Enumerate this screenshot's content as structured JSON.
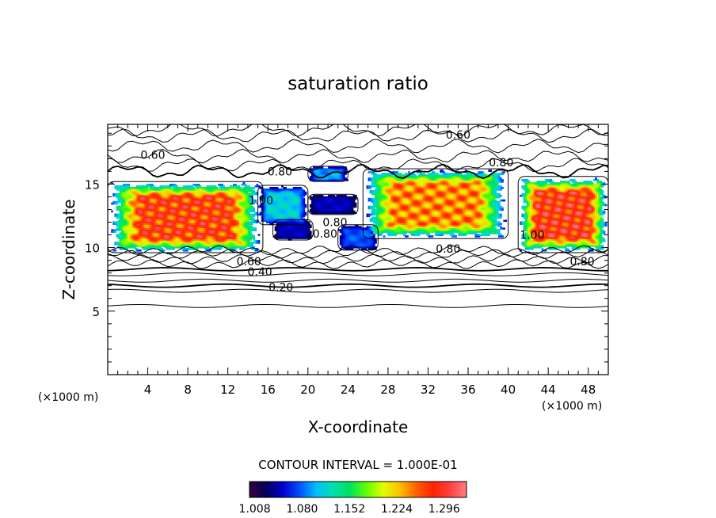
{
  "chart_data": {
    "type": "heatmap",
    "title": "saturation ratio",
    "xlabel": "X-coordinate",
    "ylabel": "Z-coordinate",
    "x_unit": "(×1000 m)",
    "z_unit": "(×1000 m)",
    "xlim": [
      0,
      50
    ],
    "ylim": [
      0,
      19.7
    ],
    "x_ticks": [
      "4",
      "8",
      "12",
      "16",
      "20",
      "24",
      "28",
      "32",
      "36",
      "40",
      "44",
      "48"
    ],
    "y_ticks": [
      "5",
      "10",
      "15"
    ],
    "contour_interval_text": "CONTOUR INTERVAL = 1.000E-01",
    "contour_interval": 0.1,
    "contour_labels": [
      {
        "text": "0.60",
        "x": 35.0,
        "z": 18.9
      },
      {
        "text": "0.60",
        "x": 4.5,
        "z": 17.3
      },
      {
        "text": "0.80",
        "x": 17.2,
        "z": 16.0
      },
      {
        "text": "0.80",
        "x": 39.3,
        "z": 16.7
      },
      {
        "text": "1.00",
        "x": 15.3,
        "z": 13.7
      },
      {
        "text": "0.80",
        "x": 22.7,
        "z": 12.0
      },
      {
        "text": "0.80",
        "x": 21.7,
        "z": 11.1
      },
      {
        "text": "1.00",
        "x": 42.4,
        "z": 11.0
      },
      {
        "text": "0.80",
        "x": 34.0,
        "z": 9.9
      },
      {
        "text": "0.60",
        "x": 14.1,
        "z": 8.9
      },
      {
        "text": "0.80",
        "x": 47.4,
        "z": 8.9
      },
      {
        "text": "0.40",
        "x": 15.2,
        "z": 8.1
      },
      {
        "text": "0.20",
        "x": 17.3,
        "z": 6.9
      }
    ],
    "supersaturation_regions": [
      {
        "x": [
          0,
          15.5
        ],
        "z": [
          9.6,
          15.2
        ],
        "peak": 1.29
      },
      {
        "x": [
          15,
          20
        ],
        "z": [
          11.8,
          14.9
        ],
        "peak": 1.12
      },
      {
        "x": [
          20,
          24
        ],
        "z": [
          15.2,
          16.4
        ],
        "peak": 1.1
      },
      {
        "x": [
          16.5,
          20.5
        ],
        "z": [
          10.6,
          12.2
        ],
        "peak": 1.05
      },
      {
        "x": [
          20,
          25
        ],
        "z": [
          12.6,
          14.2
        ],
        "peak": 1.05
      },
      {
        "x": [
          23,
          27
        ],
        "z": [
          9.8,
          11.8
        ],
        "peak": 1.08
      },
      {
        "x": [
          25.5,
          40
        ],
        "z": [
          10.7,
          16.2
        ],
        "peak": 1.26
      },
      {
        "x": [
          41,
          50
        ],
        "z": [
          9.6,
          15.6
        ],
        "peak": 1.3
      }
    ],
    "colorbar": {
      "min": 1.0,
      "max": 1.33,
      "tick_values": [
        "1.008",
        "1.080",
        "1.152",
        "1.224",
        "1.296"
      ],
      "colors": [
        "#3a003a",
        "#00005a",
        "#0000d0",
        "#0050ff",
        "#00c0ff",
        "#00e0b0",
        "#00e060",
        "#60ff00",
        "#e0ff00",
        "#ffc000",
        "#ff6000",
        "#ff2000",
        "#ff4040",
        "#ff8080"
      ]
    },
    "grid": false,
    "legend": "bottom"
  }
}
